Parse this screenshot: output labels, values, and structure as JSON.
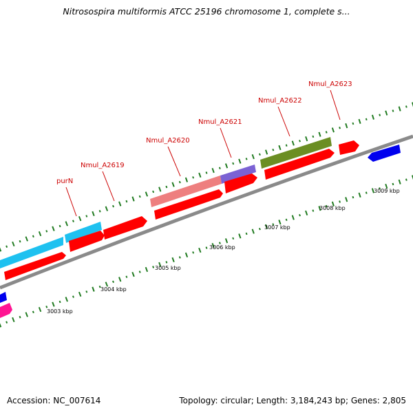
{
  "title": "Nitrosospira multiformis ATCC 25196 chromosome 1, complete s...",
  "footer": {
    "accession": "Accession: NC_007614",
    "summary": "Topology: circular; Length: 3,184,243 bp; Genes: 2,805"
  },
  "colors": {
    "cds": "#ff0000",
    "cds_light": "#ee7f7f",
    "cyan_gene": "#1ec1f0",
    "purple_gene": "#7b62d4",
    "olive_gene": "#6b8e23",
    "blue_gene": "#0000ee",
    "magenta_gene": "#ff1493",
    "backbone": "#8a8a8a",
    "tick": "#1f7a1f",
    "label": "#cc0000"
  },
  "gene_labels": [
    "purN",
    "Nmul_A2619",
    "Nmul_A2620",
    "Nmul_A2621",
    "Nmul_A2622",
    "Nmul_A2623"
  ],
  "kbp_labels": [
    "3003 kbp",
    "3004 kbp",
    "3005 kbp",
    "3006 kbp",
    "3007 kbp",
    "3008 kbp",
    "3009 kbp"
  ]
}
